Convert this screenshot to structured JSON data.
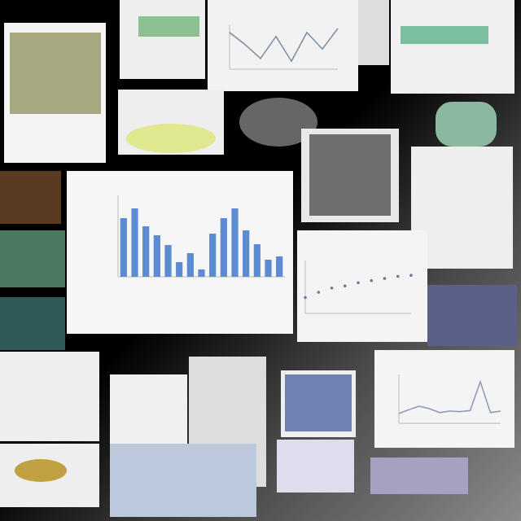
{
  "charts": [
    {
      "type": "bar",
      "color": "#5b8bd0",
      "ylim": [
        0,
        100
      ],
      "values": [
        72,
        84,
        62,
        51,
        39,
        18,
        29,
        9,
        53,
        72,
        84,
        57,
        40,
        21,
        25
      ]
    },
    {
      "type": "line",
      "color": "#7a8aa8",
      "ylim": [
        0,
        100
      ],
      "values": [
        82,
        55,
        24,
        73,
        18,
        82,
        45,
        91
      ]
    },
    {
      "type": "line",
      "color": "#8a98b8",
      "ylim": [
        0,
        100
      ],
      "values": [
        20,
        28,
        35,
        30,
        22,
        25,
        24,
        26,
        85,
        22,
        25
      ]
    },
    {
      "type": "scatter",
      "color": "#6a7aa0",
      "ylim": [
        0,
        100
      ],
      "values": [
        30,
        40,
        48,
        52,
        58,
        62,
        66,
        70,
        72
      ]
    }
  ]
}
